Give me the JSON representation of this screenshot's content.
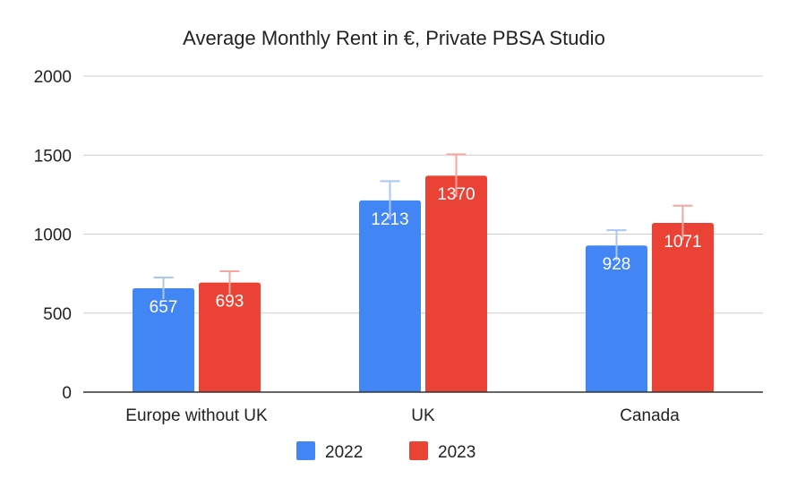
{
  "chart_data": {
    "type": "bar",
    "title": "Average Monthly Rent in €, Private PBSA Studio",
    "categories": [
      "Europe without UK",
      "UK",
      "Canada"
    ],
    "series": [
      {
        "name": "2022",
        "color": "#4285f4",
        "error_bar_color": "#a8c6fa",
        "values": [
          657,
          1213,
          928
        ],
        "error_upper": [
          725,
          1335,
          1025
        ]
      },
      {
        "name": "2023",
        "color": "#ea4335",
        "error_bar_color": "#f5a6a0",
        "values": [
          693,
          1370,
          1071
        ],
        "error_upper": [
          765,
          1505,
          1180
        ]
      }
    ],
    "ylim": [
      0,
      2000
    ],
    "yticks": [
      "0",
      "500",
      "1000",
      "1500",
      "2000"
    ],
    "xlabel": "",
    "ylabel": "",
    "grid": true,
    "legend": "bottom",
    "data_labels": true
  }
}
